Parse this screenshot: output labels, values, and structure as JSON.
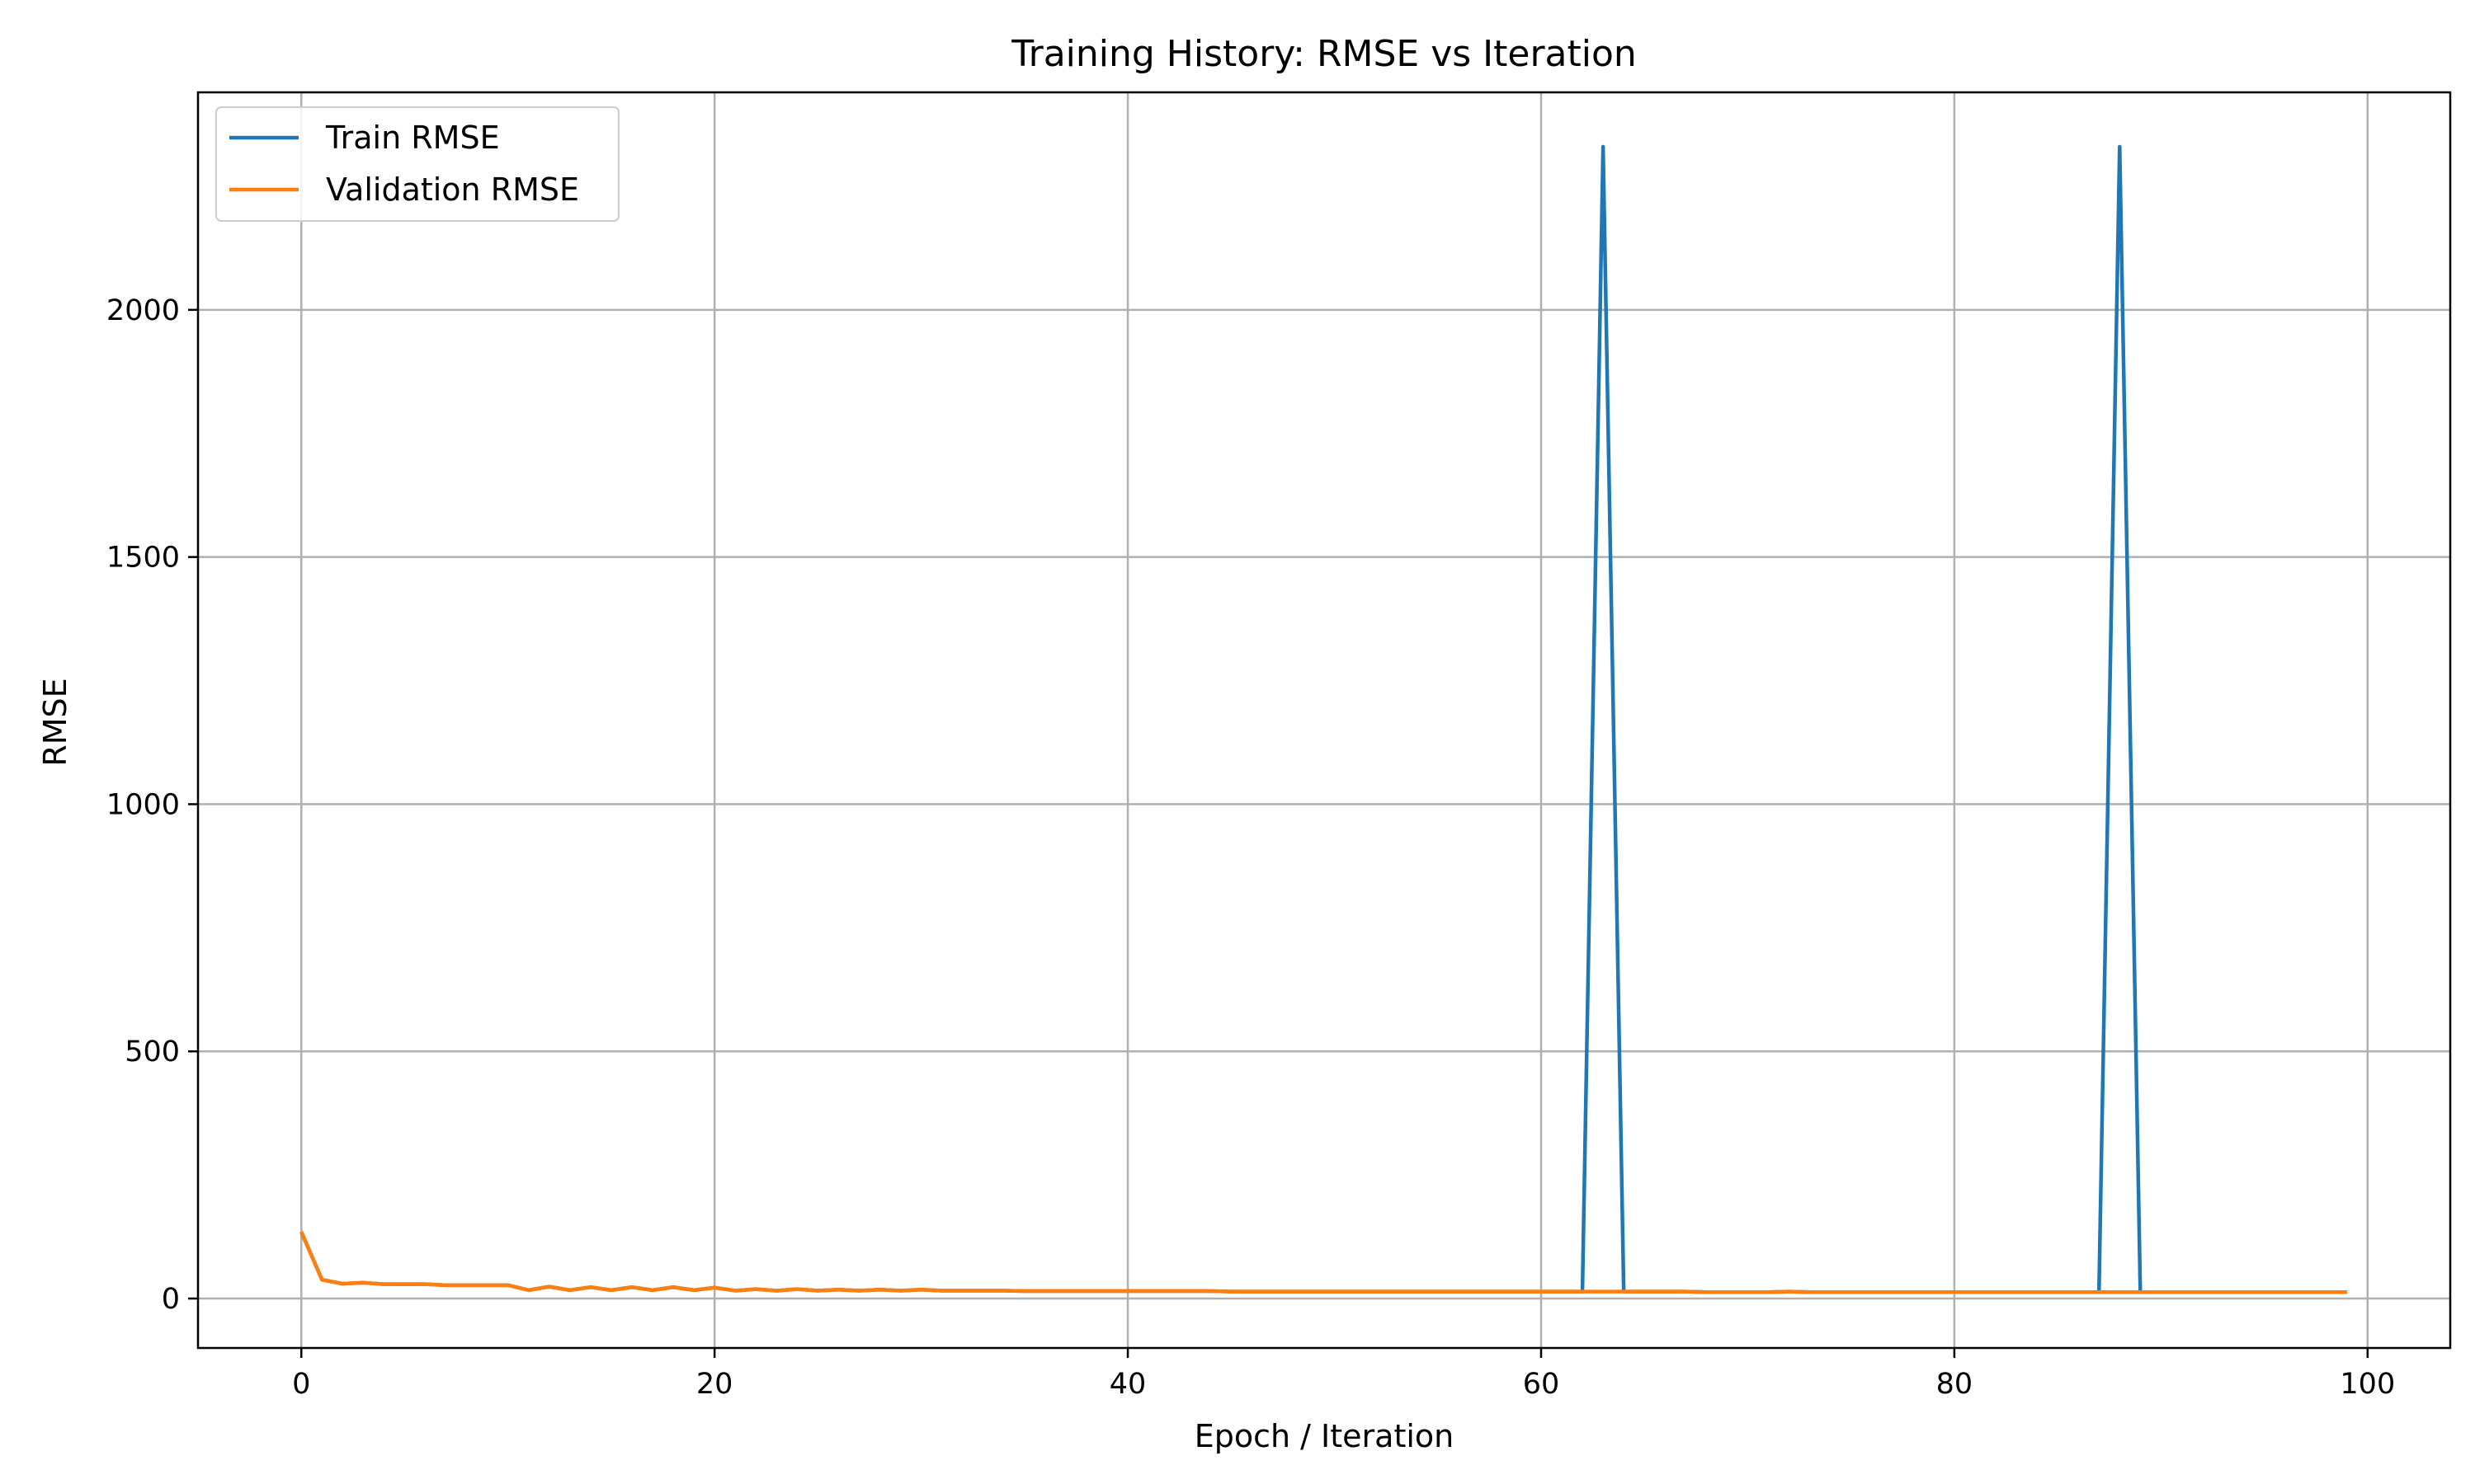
{
  "chart_data": {
    "type": "line",
    "title": "Training History: RMSE vs Iteration",
    "xlabel": "Epoch / Iteration",
    "ylabel": "RMSE",
    "xlim": [
      -5,
      104
    ],
    "ylim": [
      -100,
      2440
    ],
    "xticks": [
      0,
      20,
      40,
      60,
      80,
      100
    ],
    "yticks": [
      0,
      500,
      1000,
      1500,
      2000
    ],
    "grid": true,
    "legend_position": "top-left",
    "series": [
      {
        "name": "Train RMSE",
        "color": "#1f77b4",
        "x": [
          0,
          1,
          2,
          3,
          4,
          5,
          6,
          7,
          8,
          9,
          10,
          11,
          12,
          13,
          14,
          15,
          16,
          17,
          18,
          19,
          20,
          21,
          22,
          23,
          24,
          25,
          26,
          27,
          28,
          29,
          30,
          31,
          32,
          33,
          34,
          35,
          36,
          37,
          38,
          39,
          40,
          41,
          42,
          43,
          44,
          45,
          46,
          47,
          48,
          49,
          50,
          51,
          52,
          53,
          54,
          55,
          56,
          57,
          58,
          59,
          60,
          61,
          62,
          63,
          64,
          65,
          66,
          67,
          68,
          69,
          70,
          71,
          72,
          73,
          74,
          75,
          76,
          77,
          78,
          79,
          80,
          81,
          82,
          83,
          84,
          85,
          86,
          87,
          88,
          89,
          90,
          91,
          92,
          93,
          94,
          95,
          96,
          97,
          98,
          99
        ],
        "values": [
          135,
          38,
          30,
          32,
          29,
          29,
          29,
          27,
          27,
          27,
          27,
          17,
          24,
          17,
          23,
          17,
          23,
          17,
          23,
          17,
          22,
          16,
          19,
          16,
          19,
          16,
          18,
          16,
          18,
          16,
          18,
          16,
          16,
          16,
          16,
          15,
          15,
          15,
          15,
          15,
          15,
          15,
          15,
          15,
          15,
          14,
          14,
          14,
          14,
          14,
          14,
          14,
          14,
          14,
          14,
          14,
          14,
          14,
          14,
          14,
          14,
          14,
          14,
          2330,
          14,
          14,
          14,
          14,
          13,
          13,
          13,
          13,
          14,
          13,
          13,
          13,
          13,
          13,
          13,
          13,
          13,
          13,
          13,
          13,
          13,
          13,
          13,
          13,
          2330,
          13,
          13,
          13,
          13,
          13,
          13,
          13,
          13,
          13,
          13,
          13
        ]
      },
      {
        "name": "Validation RMSE",
        "color": "#ff7f0e",
        "x": [
          0,
          1,
          2,
          3,
          4,
          5,
          6,
          7,
          8,
          9,
          10,
          11,
          12,
          13,
          14,
          15,
          16,
          17,
          18,
          19,
          20,
          21,
          22,
          23,
          24,
          25,
          26,
          27,
          28,
          29,
          30,
          31,
          32,
          33,
          34,
          35,
          36,
          37,
          38,
          39,
          40,
          41,
          42,
          43,
          44,
          45,
          46,
          47,
          48,
          49,
          50,
          51,
          52,
          53,
          54,
          55,
          56,
          57,
          58,
          59,
          60,
          61,
          62,
          63,
          64,
          65,
          66,
          67,
          68,
          69,
          70,
          71,
          72,
          73,
          74,
          75,
          76,
          77,
          78,
          79,
          80,
          81,
          82,
          83,
          84,
          85,
          86,
          87,
          88,
          89,
          90,
          91,
          92,
          93,
          94,
          95,
          96,
          97,
          98,
          99
        ],
        "values": [
          135,
          38,
          30,
          32,
          29,
          29,
          29,
          27,
          27,
          27,
          27,
          17,
          24,
          17,
          23,
          17,
          23,
          17,
          23,
          17,
          22,
          16,
          19,
          16,
          19,
          16,
          18,
          16,
          18,
          16,
          18,
          16,
          16,
          16,
          16,
          15,
          15,
          15,
          15,
          15,
          15,
          15,
          15,
          15,
          15,
          14,
          14,
          14,
          14,
          14,
          14,
          14,
          14,
          14,
          14,
          14,
          14,
          14,
          14,
          14,
          14,
          14,
          14,
          14,
          14,
          14,
          14,
          14,
          13,
          13,
          13,
          13,
          14,
          13,
          13,
          13,
          13,
          13,
          13,
          13,
          13,
          13,
          13,
          13,
          13,
          13,
          13,
          13,
          13,
          13,
          13,
          13,
          13,
          13,
          13,
          13,
          13,
          13,
          13,
          13
        ]
      }
    ]
  }
}
